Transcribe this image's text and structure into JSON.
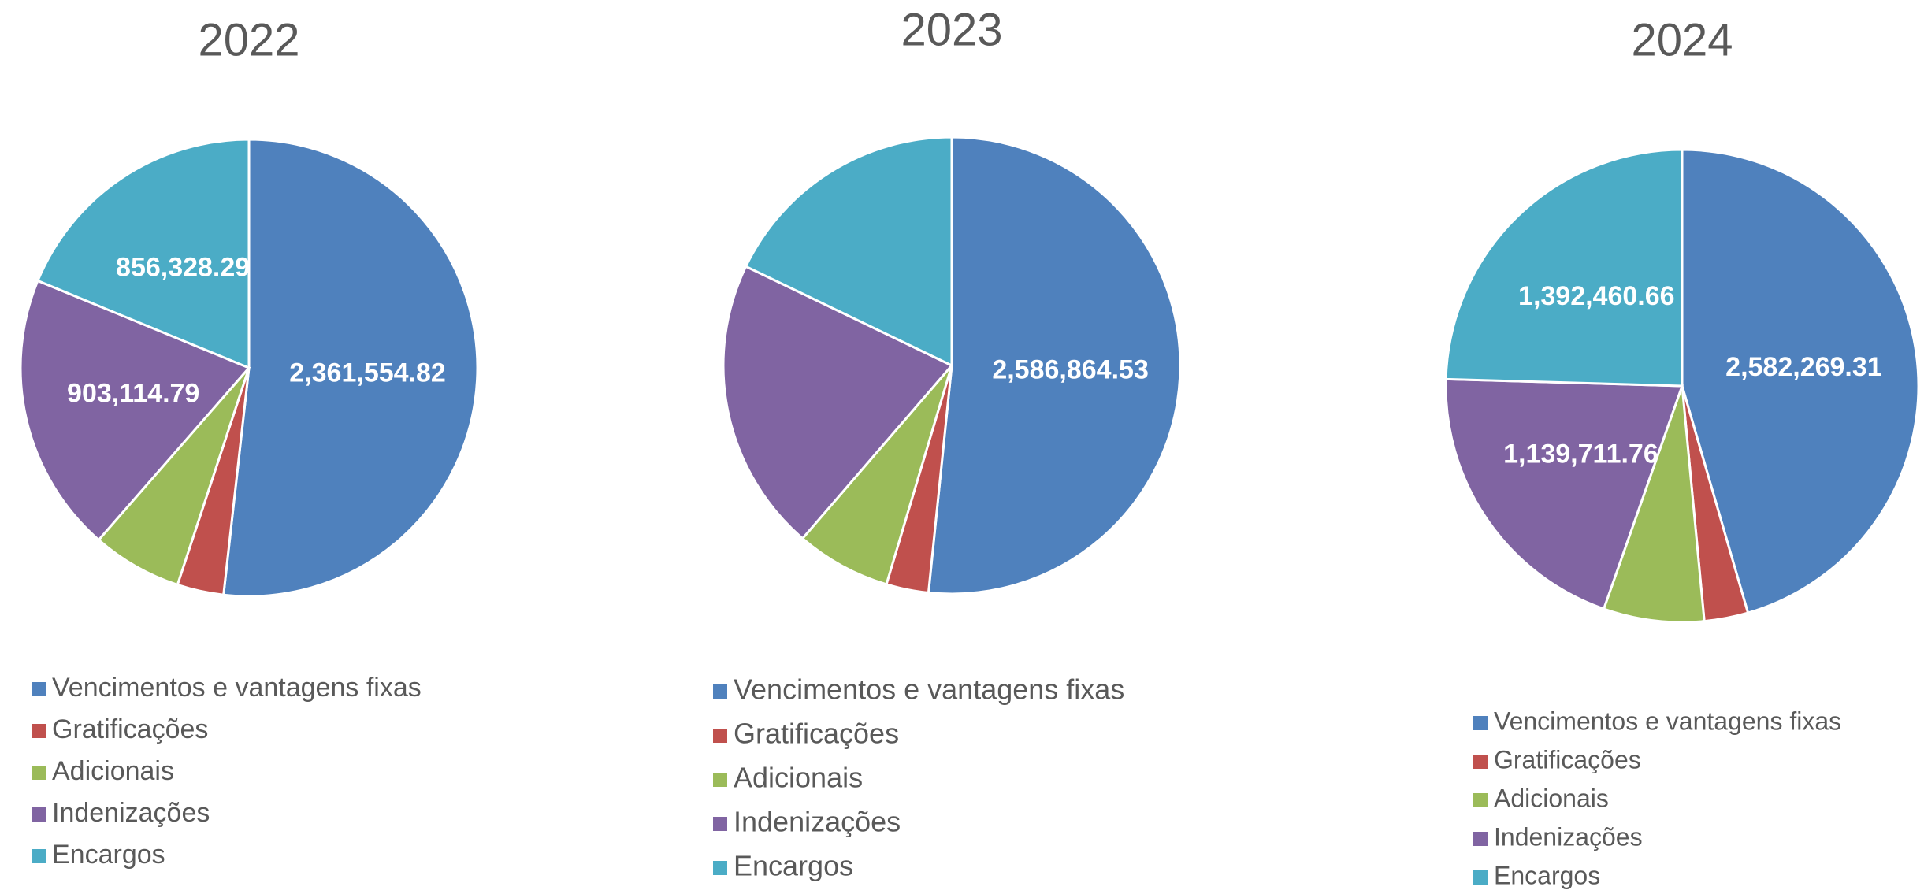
{
  "chart_data": [
    {
      "type": "pie",
      "title": "2022",
      "categories": [
        "Vencimentos e vantagens fixas",
        "Gratificações",
        "Adicionais",
        "Indenizações",
        "Encargos"
      ],
      "colors": [
        "#4f81bd",
        "#c0504d",
        "#9bbb59",
        "#8064a2",
        "#4bacc6"
      ],
      "values": [
        2361554.82,
        150000,
        290000,
        903114.79,
        856328.29
      ],
      "value_labels": [
        "2,361,554.82",
        null,
        null,
        "903,114.79",
        "856,328.29"
      ]
    },
    {
      "type": "pie",
      "title": "2023",
      "categories": [
        "Vencimentos e vantagens fixas",
        "Gratificações",
        "Adicionais",
        "Indenizações",
        "Encargos"
      ],
      "colors": [
        "#4f81bd",
        "#c0504d",
        "#9bbb59",
        "#8064a2",
        "#4bacc6"
      ],
      "values": [
        2586864.53,
        150000,
        336000,
        1043000,
        895000
      ],
      "value_labels": [
        "2,586,864.53",
        null,
        null,
        null,
        null
      ]
    },
    {
      "type": "pie",
      "title": "2024",
      "categories": [
        "Vencimentos e vantagens fixas",
        "Gratificações",
        "Adicionais",
        "Indenizações",
        "Encargos"
      ],
      "colors": [
        "#4f81bd",
        "#c0504d",
        "#9bbb59",
        "#8064a2",
        "#4bacc6"
      ],
      "values": [
        2582269.31,
        170000,
        390000,
        1139711.76,
        1392460.66
      ],
      "value_labels": [
        "2,582,269.31",
        null,
        null,
        "1,139,711.76",
        "1,392,460.66"
      ]
    }
  ]
}
